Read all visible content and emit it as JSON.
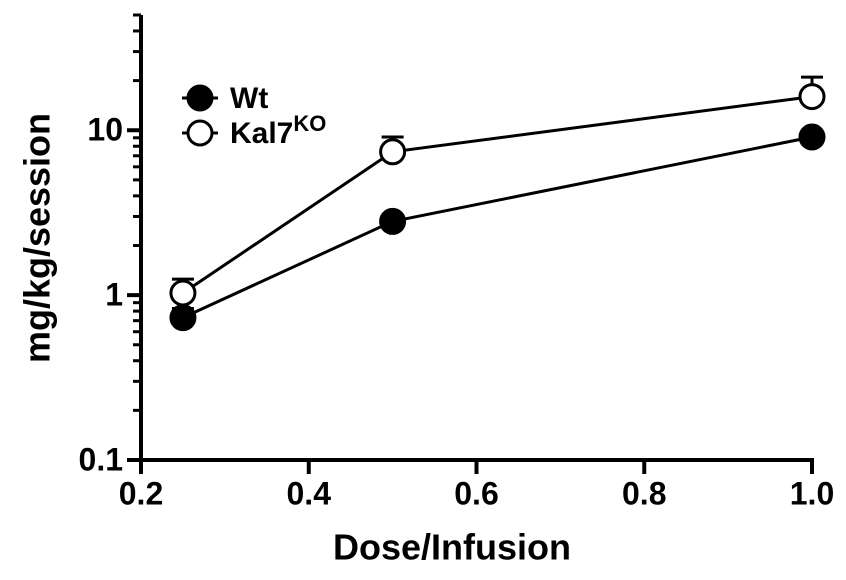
{
  "chart_data": {
    "type": "line",
    "xlabel": "Dose/Infusion",
    "ylabel": "mg/kg/session",
    "log_y": true,
    "xlim": [
      0.2,
      1.0
    ],
    "xticks": [
      0.2,
      0.4,
      0.6,
      0.8,
      {
        "value": 1.0,
        "label": "1.0"
      }
    ],
    "ylim": [
      0.1,
      50
    ],
    "yticks": [
      0.1,
      1,
      10
    ],
    "yminorticks": [
      0.2,
      0.3,
      0.4,
      0.5,
      0.6,
      0.7,
      0.8,
      0.9,
      2,
      3,
      4,
      5,
      6,
      7,
      8,
      9,
      20,
      30,
      40,
      50
    ],
    "x": [
      0.25,
      0.5,
      1.0
    ],
    "series": [
      {
        "name": "Wt",
        "color": "#000000",
        "marker_fill": "#000000",
        "values": [
          0.73,
          2.8,
          9.1
        ],
        "errors": [
          0.1,
          0.2,
          0.5
        ]
      },
      {
        "name": "Kal7",
        "name_superscript": "KO",
        "color": "#000000",
        "marker_fill": "#ffffff",
        "values": [
          1.03,
          7.4,
          16
        ],
        "errors": [
          0.22,
          1.7,
          5
        ]
      }
    ],
    "legend": "upper-left"
  }
}
